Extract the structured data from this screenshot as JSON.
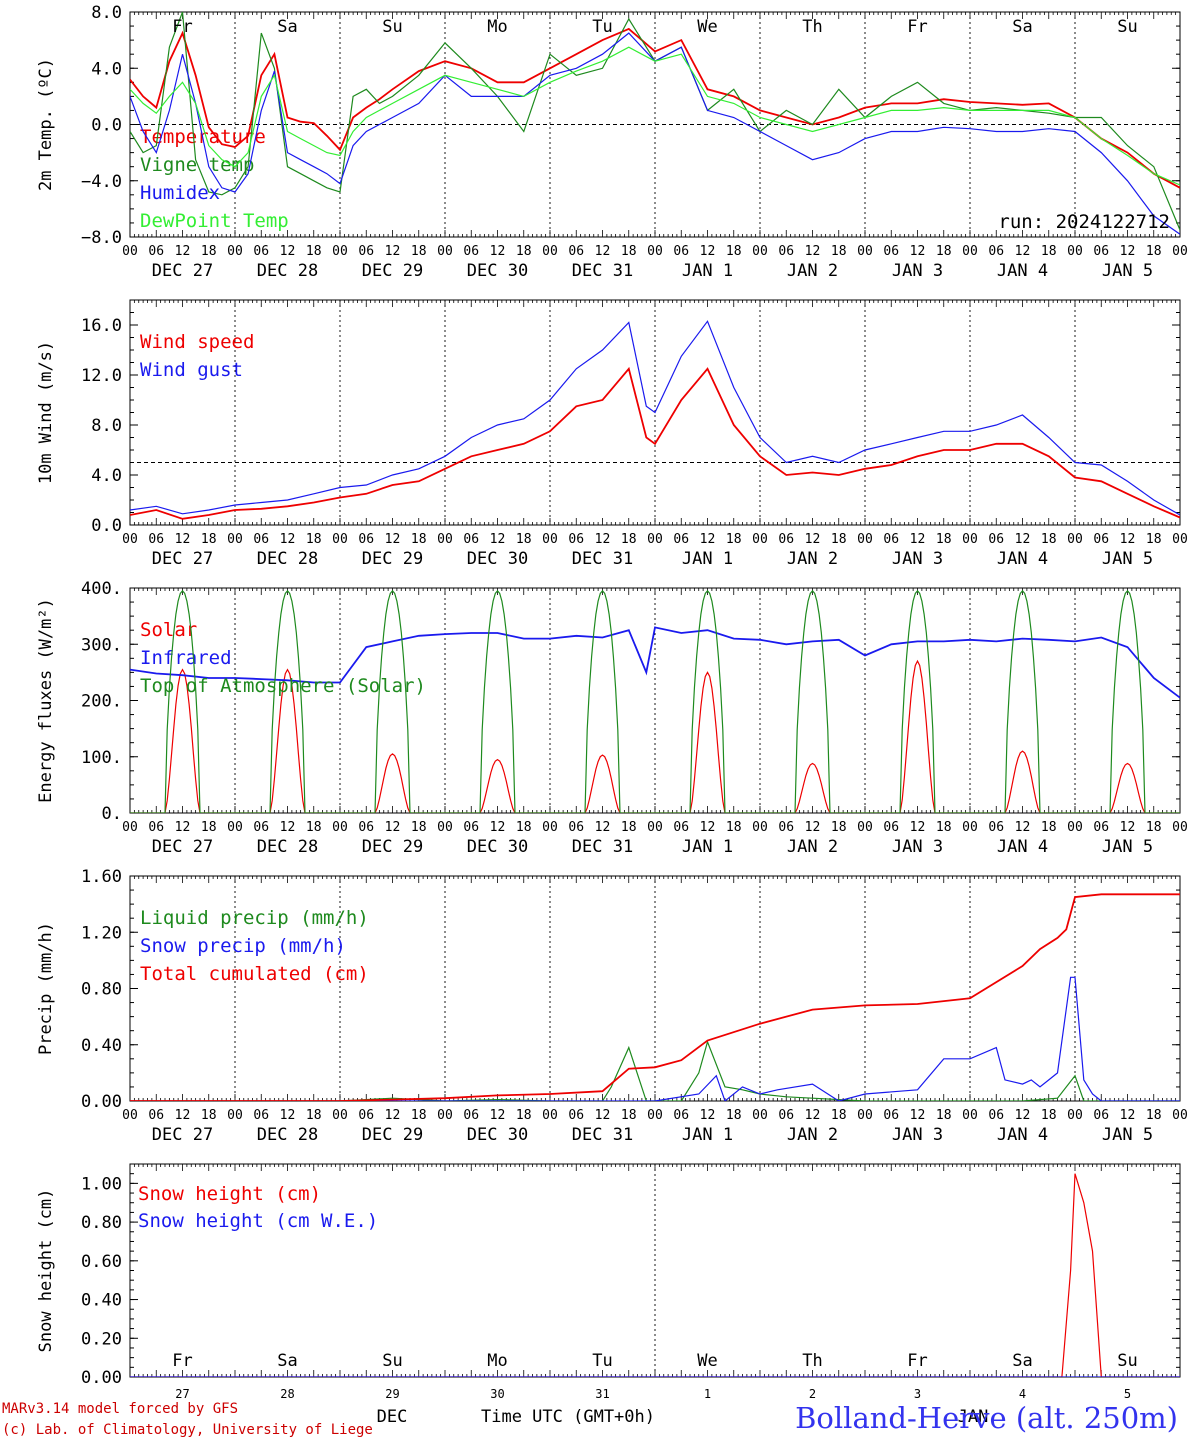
{
  "run_label": "run: 2024122712",
  "station_title": "Bolland-Herve (alt. 250m)",
  "footer": {
    "model_line": "MARv3.14 model forced by GFS",
    "credit_line": "(c) Lab. of Climatology, University of Liege",
    "month_label": "DEC",
    "month_label_2": "JAN",
    "time_axis_label": "Time UTC (GMT+0h)"
  },
  "colors": {
    "red": "#ee0000",
    "green": "#1e8a1e",
    "blue": "#1a1aee",
    "lightgreen": "#33ee33",
    "station": "#3333ee",
    "weekend": "#ee2222"
  },
  "hour_ticks": [
    "00",
    "06",
    "12",
    "18"
  ],
  "day_dates": [
    "DEC 27",
    "DEC 28",
    "DEC 29",
    "DEC 30",
    "DEC 31",
    "JAN  1",
    "JAN  2",
    "JAN  3",
    "JAN  4",
    "JAN  5"
  ],
  "day_names": [
    {
      "name": "Fr",
      "weekend": false
    },
    {
      "name": "Sa",
      "weekend": true
    },
    {
      "name": "Su",
      "weekend": true
    },
    {
      "name": "Mo",
      "weekend": false
    },
    {
      "name": "Tu",
      "weekend": false
    },
    {
      "name": "We",
      "weekend": false
    },
    {
      "name": "Th",
      "weekend": false
    },
    {
      "name": "Fr",
      "weekend": false
    },
    {
      "name": "Sa",
      "weekend": true
    },
    {
      "name": "Su",
      "weekend": true
    }
  ],
  "day_numbers": [
    "27",
    "28",
    "29",
    "30",
    "31",
    "1",
    "2",
    "3",
    "4",
    "5"
  ],
  "chart_data": [
    {
      "type": "line",
      "ylabel": "2m Temp. (ºC)",
      "ylim": [
        -8,
        8
      ],
      "yticks": [
        "8.0",
        "4.0",
        "0.0",
        "−4.0",
        "−8.0"
      ],
      "ytick_values": [
        8,
        4,
        0,
        -4,
        -8
      ],
      "ref_line": 0,
      "x_unit": "hours since DEC 27 00 UTC",
      "series": [
        {
          "name": "Temperature",
          "color": "red",
          "x": [
            0,
            3,
            6,
            9,
            12,
            15,
            18,
            21,
            24,
            27,
            30,
            33,
            36,
            39,
            42,
            45,
            48,
            51,
            54,
            57,
            60,
            66,
            72,
            78,
            84,
            90,
            96,
            102,
            108,
            114,
            120,
            126,
            132,
            138,
            144,
            150,
            156,
            162,
            168,
            174,
            180,
            186,
            192,
            198,
            204,
            210,
            216,
            222,
            228,
            234,
            240
          ],
          "y": [
            3.2,
            2.0,
            1.2,
            4.5,
            6.5,
            3.5,
            -0.2,
            -1.4,
            -1.6,
            -0.8,
            3.5,
            5.0,
            0.5,
            0.2,
            0.1,
            -0.8,
            -1.8,
            0.5,
            1.2,
            1.8,
            2.5,
            3.8,
            4.5,
            4.0,
            3.0,
            3.0,
            4.0,
            5.0,
            6.0,
            6.8,
            5.2,
            6.0,
            2.5,
            2.0,
            1.0,
            0.5,
            0.0,
            0.5,
            1.2,
            1.5,
            1.5,
            1.8,
            1.6,
            1.5,
            1.4,
            1.5,
            0.5,
            -1.0,
            -2.0,
            -3.5,
            -4.5
          ]
        },
        {
          "name": "Vigne temp",
          "color": "green",
          "x": [
            0,
            3,
            6,
            9,
            12,
            15,
            18,
            21,
            24,
            27,
            30,
            33,
            36,
            39,
            42,
            45,
            48,
            51,
            54,
            57,
            60,
            66,
            72,
            78,
            84,
            90,
            96,
            102,
            108,
            114,
            120,
            126,
            132,
            138,
            144,
            150,
            156,
            162,
            168,
            174,
            180,
            186,
            192,
            198,
            204,
            210,
            216,
            222,
            228,
            234,
            240
          ],
          "y": [
            -0.5,
            -2.0,
            -1.5,
            5.5,
            8.0,
            -2.5,
            -4.8,
            -5.0,
            -4.5,
            -3.0,
            6.5,
            4.0,
            -3.0,
            -3.5,
            -4.0,
            -4.5,
            -4.8,
            2.0,
            2.5,
            1.5,
            2.0,
            3.5,
            5.8,
            4.0,
            2.0,
            -0.5,
            5.0,
            3.5,
            4.0,
            7.5,
            4.5,
            5.5,
            1.0,
            2.5,
            -0.5,
            1.0,
            0.0,
            2.5,
            0.5,
            2.0,
            3.0,
            1.5,
            1.0,
            1.2,
            1.0,
            0.8,
            0.5,
            0.5,
            -1.5,
            -3.0,
            -7.5
          ]
        },
        {
          "name": "Humidex",
          "color": "blue",
          "x": [
            0,
            3,
            6,
            9,
            12,
            15,
            18,
            21,
            24,
            27,
            30,
            33,
            36,
            39,
            42,
            45,
            48,
            51,
            54,
            57,
            60,
            66,
            72,
            78,
            84,
            90,
            96,
            102,
            108,
            114,
            120,
            126,
            132,
            138,
            144,
            150,
            156,
            162,
            168,
            174,
            180,
            186,
            192,
            198,
            204,
            210,
            216,
            222,
            228,
            234,
            240
          ],
          "y": [
            2.0,
            -0.5,
            -2.0,
            1.0,
            5.0,
            1.5,
            -3.0,
            -4.5,
            -4.8,
            -3.5,
            1.0,
            3.8,
            -2.0,
            -2.5,
            -3.0,
            -3.5,
            -4.2,
            -1.5,
            -0.5,
            0.0,
            0.5,
            1.5,
            3.5,
            2.0,
            2.0,
            2.0,
            3.5,
            4.0,
            5.0,
            6.5,
            4.5,
            5.5,
            1.0,
            0.5,
            -0.5,
            -1.5,
            -2.5,
            -2.0,
            -1.0,
            -0.5,
            -0.5,
            -0.2,
            -0.3,
            -0.5,
            -0.5,
            -0.3,
            -0.5,
            -2.0,
            -4.0,
            -6.5,
            -7.8
          ]
        },
        {
          "name": "DewPoint Temp",
          "color": "lightgreen",
          "x": [
            0,
            3,
            6,
            9,
            12,
            15,
            18,
            21,
            24,
            27,
            30,
            33,
            36,
            39,
            42,
            45,
            48,
            51,
            54,
            57,
            60,
            66,
            72,
            78,
            84,
            90,
            96,
            102,
            108,
            114,
            120,
            126,
            132,
            138,
            144,
            150,
            156,
            162,
            168,
            174,
            180,
            186,
            192,
            198,
            204,
            210,
            216,
            222,
            228,
            234,
            240
          ],
          "y": [
            2.5,
            1.5,
            0.8,
            2.0,
            3.0,
            1.5,
            -1.5,
            -2.5,
            -3.0,
            -2.0,
            2.0,
            3.5,
            -0.5,
            -1.0,
            -1.5,
            -2.0,
            -2.2,
            -0.5,
            0.5,
            1.0,
            1.5,
            2.5,
            3.5,
            3.0,
            2.5,
            2.0,
            3.0,
            3.8,
            4.5,
            5.5,
            4.5,
            5.0,
            2.0,
            1.5,
            0.5,
            0.0,
            -0.5,
            0.0,
            0.5,
            1.0,
            1.0,
            1.2,
            1.0,
            1.0,
            1.0,
            1.0,
            0.5,
            -1.0,
            -2.2,
            -3.5,
            -4.3
          ]
        }
      ]
    },
    {
      "type": "line",
      "ylabel": "10m Wind (m/s)",
      "ylim": [
        0,
        18
      ],
      "yticks": [
        "16.0",
        "12.0",
        "8.0",
        "4.0",
        "0.0"
      ],
      "ytick_values": [
        16,
        12,
        8,
        4,
        0
      ],
      "ref_line": 5,
      "x_unit": "hours since DEC 27 00 UTC",
      "series": [
        {
          "name": "Wind speed",
          "color": "red",
          "x": [
            0,
            6,
            12,
            18,
            24,
            30,
            36,
            42,
            48,
            54,
            60,
            66,
            72,
            78,
            84,
            90,
            96,
            102,
            108,
            114,
            118,
            120,
            126,
            132,
            138,
            144,
            150,
            156,
            162,
            168,
            174,
            180,
            186,
            192,
            198,
            204,
            210,
            216,
            222,
            228,
            234,
            240
          ],
          "y": [
            0.8,
            1.2,
            0.5,
            0.8,
            1.2,
            1.3,
            1.5,
            1.8,
            2.2,
            2.5,
            3.2,
            3.5,
            4.5,
            5.5,
            6.0,
            6.5,
            7.5,
            9.5,
            10.0,
            12.5,
            7.0,
            6.5,
            10.0,
            12.5,
            8.0,
            5.5,
            4.0,
            4.2,
            4.0,
            4.5,
            4.8,
            5.5,
            6.0,
            6.0,
            6.5,
            6.5,
            5.5,
            3.8,
            3.5,
            2.5,
            1.5,
            0.6
          ]
        },
        {
          "name": "Wind gust",
          "color": "blue",
          "x": [
            0,
            6,
            12,
            18,
            24,
            30,
            36,
            42,
            48,
            54,
            60,
            66,
            72,
            78,
            84,
            90,
            96,
            102,
            108,
            114,
            118,
            120,
            126,
            132,
            138,
            144,
            150,
            156,
            162,
            168,
            174,
            180,
            186,
            192,
            198,
            204,
            210,
            216,
            222,
            228,
            234,
            240
          ],
          "y": [
            1.2,
            1.5,
            0.9,
            1.2,
            1.6,
            1.8,
            2.0,
            2.5,
            3.0,
            3.2,
            4.0,
            4.5,
            5.5,
            7.0,
            8.0,
            8.5,
            10.0,
            12.5,
            14.0,
            16.2,
            9.5,
            9.0,
            13.5,
            16.3,
            11.0,
            7.0,
            5.0,
            5.5,
            5.0,
            6.0,
            6.5,
            7.0,
            7.5,
            7.5,
            8.0,
            8.8,
            7.0,
            5.0,
            4.8,
            3.5,
            2.0,
            0.8
          ]
        }
      ]
    },
    {
      "type": "line",
      "ylabel": "Energy fluxes (W/m²)",
      "ylim": [
        0,
        400
      ],
      "yticks": [
        "400.",
        "300.",
        "200.",
        "100.",
        "0."
      ],
      "ytick_values": [
        400,
        300,
        200,
        100,
        0
      ],
      "x_unit": "hours since DEC 27 00 UTC",
      "series": [
        {
          "name": "Solar",
          "color": "red",
          "peaks": [
            255,
            255,
            105,
            95,
            103,
            250,
            88,
            270,
            110,
            88
          ]
        },
        {
          "name": "Infrared",
          "color": "blue",
          "x": [
            0,
            6,
            12,
            18,
            24,
            30,
            36,
            42,
            48,
            54,
            60,
            66,
            72,
            78,
            84,
            90,
            96,
            102,
            108,
            114,
            118,
            120,
            126,
            132,
            138,
            144,
            150,
            156,
            162,
            168,
            174,
            180,
            186,
            192,
            198,
            204,
            210,
            216,
            222,
            228,
            234,
            240
          ],
          "y": [
            255,
            248,
            245,
            240,
            240,
            238,
            236,
            232,
            232,
            295,
            305,
            315,
            318,
            320,
            320,
            310,
            310,
            315,
            312,
            325,
            250,
            330,
            320,
            325,
            310,
            308,
            300,
            305,
            308,
            280,
            300,
            305,
            305,
            308,
            305,
            310,
            308,
            305,
            312,
            295,
            240,
            205
          ]
        },
        {
          "name": "Top of Atmosphere (Solar)",
          "color": "green",
          "peak": 395
        }
      ]
    },
    {
      "type": "line",
      "ylabel": "Precip (mm/h)",
      "ylim": [
        0,
        1.6
      ],
      "yticks": [
        "1.60",
        "1.20",
        "0.80",
        "0.40",
        "0.00"
      ],
      "ytick_values": [
        1.6,
        1.2,
        0.8,
        0.4,
        0
      ],
      "x_unit": "hours since DEC 27 00 UTC",
      "series": [
        {
          "name": "Liquid precip (mm/h)",
          "color": "green",
          "x": [
            0,
            48,
            54,
            60,
            66,
            72,
            84,
            96,
            108,
            110,
            114,
            118,
            120,
            126,
            130,
            132,
            136,
            140,
            144,
            150,
            156,
            168,
            180,
            192,
            204,
            212,
            216,
            218,
            220,
            240
          ],
          "y": [
            0,
            0,
            0.01,
            0.02,
            0.01,
            0.0,
            0.01,
            0.0,
            0.0,
            0.1,
            0.38,
            0.0,
            0.0,
            0.0,
            0.2,
            0.42,
            0.1,
            0.08,
            0.05,
            0.03,
            0.02,
            0.0,
            0.0,
            0.0,
            0.0,
            0.02,
            0.18,
            0.0,
            0.0,
            0.0
          ]
        },
        {
          "name": "Snow precip (mm/h)",
          "color": "blue",
          "x": [
            0,
            96,
            120,
            130,
            134,
            136,
            140,
            144,
            148,
            156,
            162,
            168,
            180,
            186,
            192,
            198,
            200,
            204,
            206,
            208,
            210,
            212,
            215,
            216,
            218,
            220,
            222,
            240
          ],
          "y": [
            0,
            0,
            0.0,
            0.05,
            0.18,
            0.0,
            0.1,
            0.05,
            0.08,
            0.12,
            0.0,
            0.05,
            0.08,
            0.3,
            0.3,
            0.38,
            0.15,
            0.12,
            0.15,
            0.1,
            0.15,
            0.2,
            0.88,
            0.88,
            0.15,
            0.05,
            0.0,
            0.0
          ]
        },
        {
          "name": "Total cumulated (cm)",
          "color": "red",
          "x": [
            0,
            48,
            60,
            72,
            84,
            96,
            108,
            114,
            120,
            126,
            132,
            144,
            156,
            168,
            180,
            192,
            204,
            208,
            212,
            214,
            216,
            222,
            240
          ],
          "y": [
            0,
            0,
            0.01,
            0.02,
            0.04,
            0.05,
            0.07,
            0.23,
            0.24,
            0.29,
            0.43,
            0.55,
            0.65,
            0.68,
            0.69,
            0.73,
            0.96,
            1.08,
            1.16,
            1.22,
            1.45,
            1.47,
            1.47
          ]
        }
      ]
    },
    {
      "type": "line",
      "ylabel": "Snow height (cm)",
      "ylim": [
        0,
        1.1
      ],
      "yticks": [
        "1.00",
        "0.80",
        "0.60",
        "0.40",
        "0.20",
        "0.00"
      ],
      "ytick_values": [
        1,
        0.8,
        0.6,
        0.4,
        0.2,
        0
      ],
      "x_unit": "hours since DEC 27 00 UTC",
      "series": [
        {
          "name": "Snow height (cm)",
          "color": "red",
          "x": [
            0,
            213,
            215,
            216,
            218,
            220,
            222,
            240
          ],
          "y": [
            0,
            0,
            0.55,
            1.05,
            0.9,
            0.65,
            0,
            0
          ]
        },
        {
          "name": "Snow height (cm W.E.)",
          "color": "blue",
          "x": [
            0,
            240
          ],
          "y": [
            0,
            0
          ]
        }
      ]
    }
  ]
}
